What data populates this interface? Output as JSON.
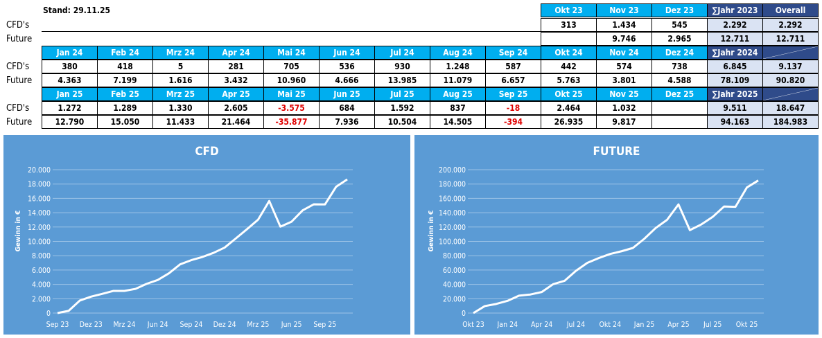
{
  "table": {
    "stand": "Stand: 29.11.25",
    "row_labels": {
      "cfd": "CFD's",
      "future": "Future"
    },
    "colors": {
      "header": "#00aeef",
      "sum_header": "#2f4b8a",
      "sum_cell": "#dae3f3",
      "negative": "#e00000"
    },
    "years": [
      {
        "months": [
          "Okt 23",
          "Nov 23",
          "Dez 23"
        ],
        "cfd": [
          "313",
          "1.434",
          "545"
        ],
        "future": [
          "",
          "9.746",
          "2.965"
        ],
        "sum_label": "∑Jahr 2023",
        "sum_cfd": "2.292",
        "sum_future": "12.711",
        "overall_label": "Overall",
        "overall_cfd": "2.292",
        "overall_future": "12.711"
      },
      {
        "months": [
          "Jan 24",
          "Feb 24",
          "Mrz 24",
          "Apr 24",
          "Mai 24",
          "Jun 24",
          "Jul 24",
          "Aug 24",
          "Sep 24",
          "Okt 24",
          "Nov 24",
          "Dez 24"
        ],
        "cfd": [
          "380",
          "418",
          "5",
          "281",
          "705",
          "536",
          "930",
          "1.248",
          "587",
          "442",
          "574",
          "738"
        ],
        "future": [
          "4.363",
          "7.199",
          "1.616",
          "3.432",
          "10.960",
          "4.666",
          "13.985",
          "11.079",
          "6.657",
          "5.763",
          "3.801",
          "4.588"
        ],
        "sum_label": "∑Jahr 2024",
        "sum_cfd": "6.845",
        "sum_future": "78.109",
        "overall_label": "",
        "overall_cfd": "9.137",
        "overall_future": "90.820"
      },
      {
        "months": [
          "Jan 25",
          "Feb 25",
          "Mrz 25",
          "Apr 25",
          "Mai 25",
          "Jun 25",
          "Jul 25",
          "Aug 25",
          "Sep 25",
          "Okt 25",
          "Nov 25",
          "Dez 25"
        ],
        "cfd": [
          "1.272",
          "1.289",
          "1.330",
          "2.605",
          "-3.575",
          "684",
          "1.592",
          "837",
          "-18",
          "2.464",
          "1.032",
          ""
        ],
        "future": [
          "12.790",
          "15.050",
          "11.433",
          "21.464",
          "-35.877",
          "7.936",
          "10.504",
          "14.505",
          "-394",
          "26.935",
          "9.817",
          ""
        ],
        "sum_label": "∑Jahr 2025",
        "sum_cfd": "9.511",
        "sum_future": "94.163",
        "overall_label": "",
        "overall_cfd": "18.647",
        "overall_future": "184.983"
      }
    ]
  },
  "chart_data": [
    {
      "type": "line",
      "title": "CFD",
      "ylabel": "Gewinn in €",
      "xlabel": "",
      "ylim": [
        0,
        20000
      ],
      "yticks": [
        "0",
        "2.000",
        "4.000",
        "6.000",
        "8.000",
        "10.000",
        "12.000",
        "14.000",
        "16.000",
        "18.000",
        "20.000"
      ],
      "grid": true,
      "line_color": "#ffffff",
      "background": "#5b9bd5",
      "x": [
        "Sep 23",
        "Okt 23",
        "Nov 23",
        "Dez 23",
        "Jan 24",
        "Feb 24",
        "Mrz 24",
        "Apr 24",
        "Mai 24",
        "Jun 24",
        "Jul 24",
        "Aug 24",
        "Sep 24",
        "Okt 24",
        "Nov 24",
        "Dez 24",
        "Jan 25",
        "Feb 25",
        "Mrz 25",
        "Apr 25",
        "Mai 25",
        "Jun 25",
        "Jul 25",
        "Aug 25",
        "Sep 25",
        "Okt 25",
        "Nov 25"
      ],
      "xticks": [
        "Sep 23",
        "Dez 23",
        "Mrz 24",
        "Jun 24",
        "Sep 24",
        "Dez 24",
        "Mrz 25",
        "Jun 25",
        "Sep 25"
      ],
      "values": [
        0,
        313,
        1747,
        2292,
        2672,
        3090,
        3095,
        3376,
        4081,
        4617,
        5547,
        6795,
        7382,
        7824,
        8398,
        9137,
        10409,
        11698,
        13028,
        15633,
        12058,
        12742,
        14334,
        15171,
        15153,
        17617,
        18647
      ]
    },
    {
      "type": "line",
      "title": "FUTURE",
      "ylabel": "Gewinn in €",
      "xlabel": "",
      "ylim": [
        0,
        200000
      ],
      "yticks": [
        "0",
        "20.000",
        "40.000",
        "60.000",
        "80.000",
        "100.000",
        "120.000",
        "140.000",
        "160.000",
        "180.000",
        "200.000"
      ],
      "grid": true,
      "line_color": "#ffffff",
      "background": "#5b9bd5",
      "x": [
        "Okt 23",
        "Nov 23",
        "Dez 23",
        "Jan 24",
        "Feb 24",
        "Mrz 24",
        "Apr 24",
        "Mai 24",
        "Jun 24",
        "Jul 24",
        "Aug 24",
        "Sep 24",
        "Okt 24",
        "Nov 24",
        "Dez 24",
        "Jan 25",
        "Feb 25",
        "Mrz 25",
        "Apr 25",
        "Mai 25",
        "Jun 25",
        "Jul 25",
        "Aug 25",
        "Sep 25",
        "Okt 25",
        "Nov 25"
      ],
      "xticks": [
        "Okt 23",
        "Jan 24",
        "Apr 24",
        "Jul 24",
        "Okt 24",
        "Jan 25",
        "Apr 25",
        "Jul 25",
        "Okt 25"
      ],
      "values": [
        0,
        9746,
        12711,
        17074,
        24273,
        25889,
        29321,
        40281,
        44947,
        58932,
        70011,
        76668,
        82431,
        86232,
        90820,
        103610,
        118660,
        130093,
        151557,
        115680,
        123616,
        134120,
        148625,
        148231,
        175166,
        184983
      ]
    }
  ]
}
